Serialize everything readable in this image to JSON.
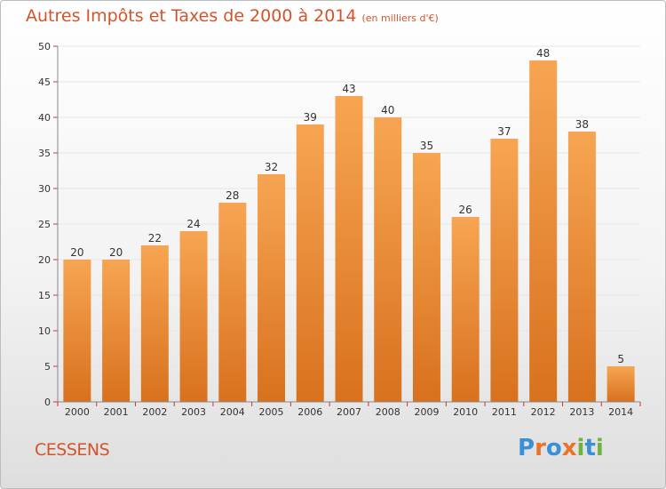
{
  "title": "Autres Impôts et Taxes de 2000 à 2014",
  "subtitle": "(en milliers d'€)",
  "place": "CESSENS",
  "logo": {
    "text": "Proxiti",
    "colors": [
      "#3b8fd6",
      "#e8732a",
      "#3b8fd6",
      "#e8732a",
      "#6db33f",
      "#3b8fd6",
      "#6db33f"
    ]
  },
  "colors": {
    "bar_top": "#f7a552",
    "bar_bottom": "#d8711e",
    "title": "#d2542a",
    "axis_red": "#cc3333"
  },
  "chart_data": {
    "type": "bar",
    "categories": [
      "2000",
      "2001",
      "2002",
      "2003",
      "2004",
      "2005",
      "2006",
      "2007",
      "2008",
      "2009",
      "2010",
      "2011",
      "2012",
      "2013",
      "2014"
    ],
    "values": [
      20,
      20,
      22,
      24,
      28,
      32,
      39,
      43,
      40,
      35,
      26,
      37,
      48,
      38,
      5
    ],
    "ylim": [
      0,
      50
    ],
    "yticks": [
      0,
      5,
      10,
      15,
      20,
      25,
      30,
      35,
      40,
      45,
      50
    ],
    "grid": true,
    "xlabel": "",
    "ylabel": ""
  }
}
